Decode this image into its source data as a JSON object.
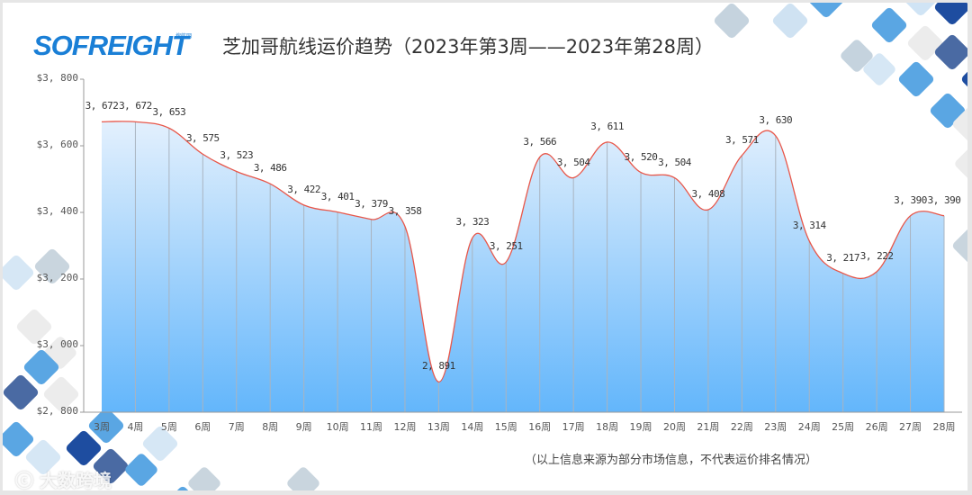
{
  "header": {
    "logo_text": "SOFREIGHT",
    "logo_sub": "搜航网",
    "title": "芝加哥航线运价趋势（2023年第3周——2023年第28周）"
  },
  "footnote": "（以上信息来源为部分市场信息，不代表运价排名情况）",
  "watermark": "大数跨境",
  "colors": {
    "line": "#e8574a",
    "fill_top": "#e3f0fd",
    "fill_bottom": "#63b6fb",
    "divider": "#a9b4c0",
    "axis": "#999999"
  },
  "chart_data": {
    "type": "area",
    "title": "芝加哥航线运价趋势（2023年第3周——2023年第28周）",
    "xlabel": "",
    "ylabel": "",
    "categories": [
      "3周",
      "4周",
      "5周",
      "6周",
      "7周",
      "8周",
      "9周",
      "10周",
      "11周",
      "12周",
      "13周",
      "14周",
      "15周",
      "16周",
      "17周",
      "18周",
      "19周",
      "20周",
      "21周",
      "22周",
      "23周",
      "24周",
      "25周",
      "26周",
      "27周",
      "28周"
    ],
    "values": [
      3672,
      3672,
      3653,
      3575,
      3523,
      3486,
      3422,
      3401,
      3379,
      3358,
      2891,
      3323,
      3251,
      3566,
      3504,
      3611,
      3520,
      3504,
      3408,
      3571,
      3630,
      3314,
      3217,
      3222,
      3390,
      3390
    ],
    "data_labels": [
      "3, 672",
      "3, 672",
      "3, 653",
      "3, 575",
      "3, 523",
      "3, 486",
      "3, 422",
      "3, 401",
      "3, 379",
      "3, 358",
      "2, 891",
      "3, 323",
      "3, 251",
      "3, 566",
      "3, 504",
      "3, 611",
      "3, 520",
      "3, 504",
      "3, 408",
      "3, 571",
      "3, 630",
      "3, 314",
      "3, 217",
      "3, 222",
      "3, 390",
      "3, 390"
    ],
    "ylim": [
      2800,
      3800
    ],
    "yticks": [
      2800,
      3000,
      3200,
      3400,
      3600,
      3800
    ],
    "ytick_labels": [
      "$2, 800",
      "$3, 000",
      "$3, 200",
      "$3, 400",
      "$3, 600",
      "$3, 800"
    ],
    "grid": false,
    "legend": null,
    "smooth": true
  }
}
